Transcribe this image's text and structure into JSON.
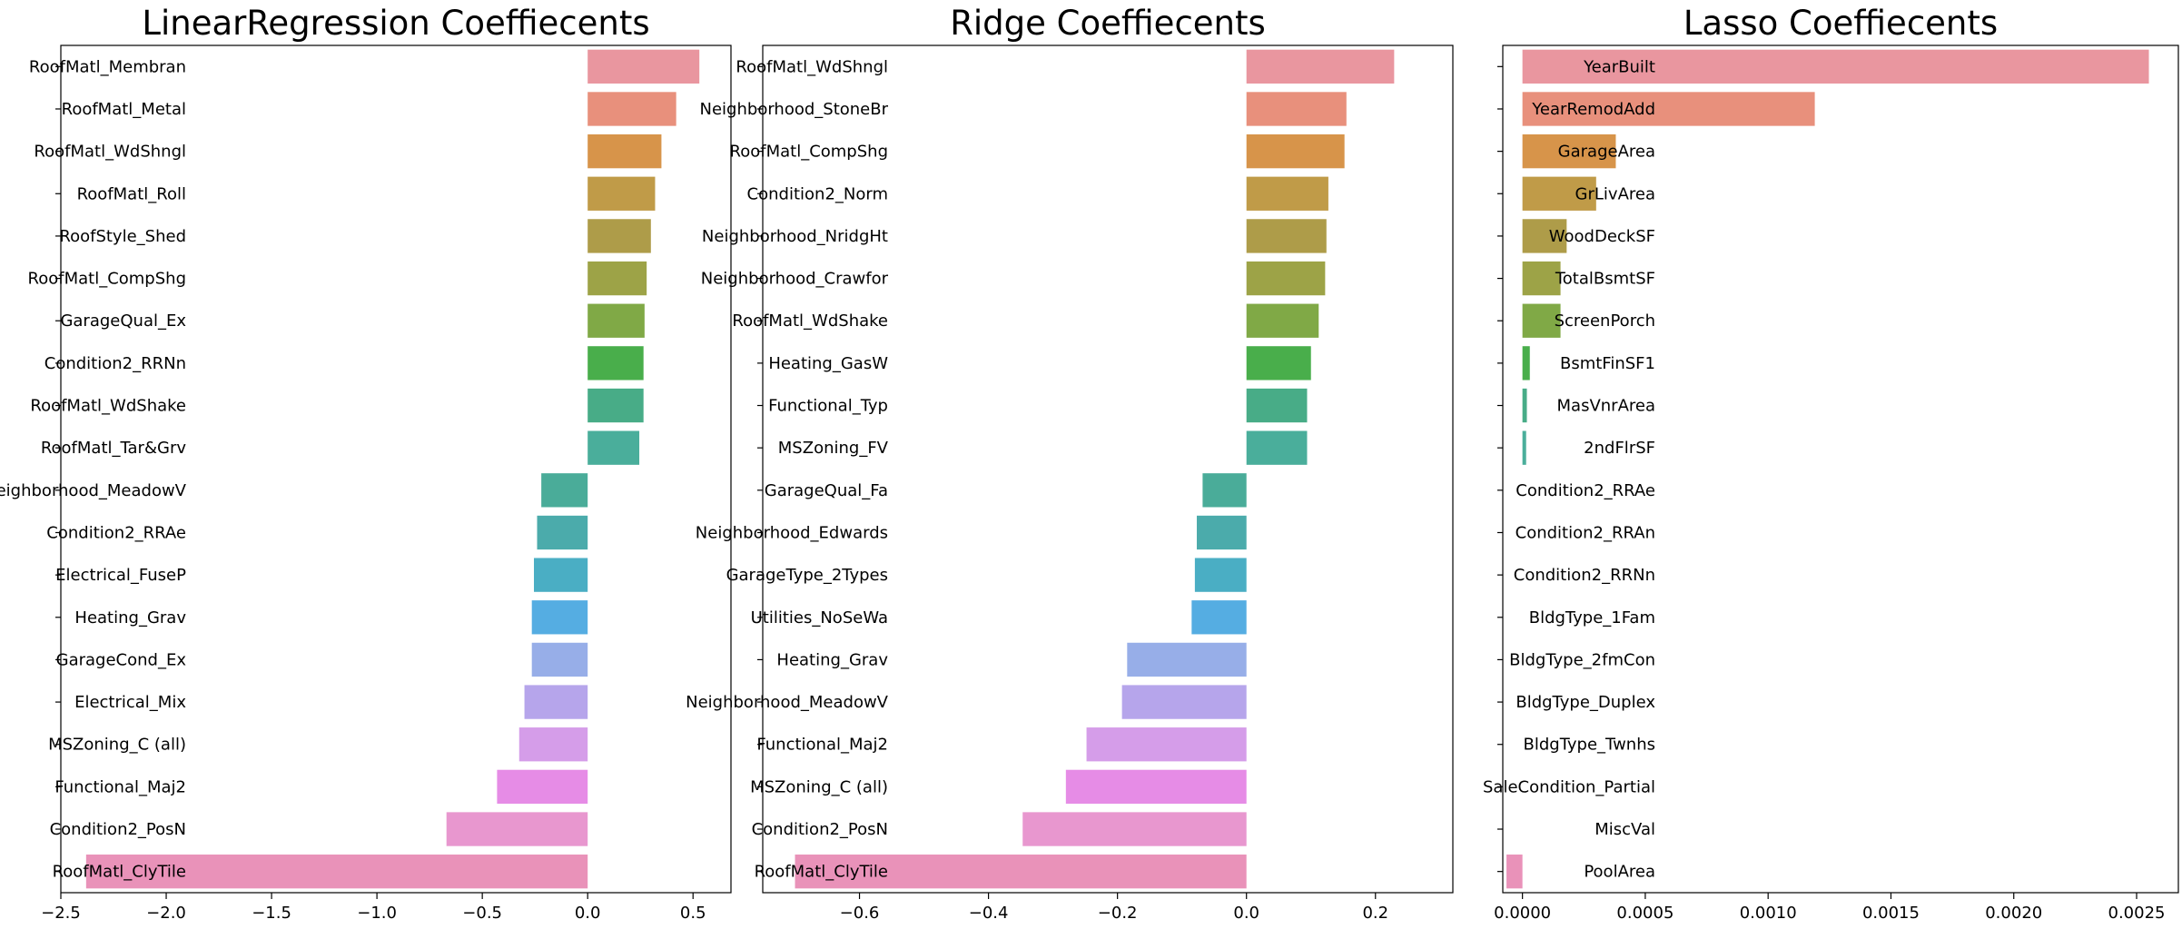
{
  "chart_data": [
    {
      "type": "bar",
      "orientation": "horizontal",
      "title": "LinearRegression Coeffiecents",
      "xlabel": "",
      "ylabel": "",
      "xlim": [
        -2.5,
        0.68
      ],
      "xticks": [
        -2.5,
        -2.0,
        -1.5,
        -1.0,
        -0.5,
        0.0,
        0.5
      ],
      "xtick_labels": [
        "−2.5",
        "−2.0",
        "−1.5",
        "−1.0",
        "−0.5",
        "0.0",
        "0.5"
      ],
      "categories": [
        "RoofMatl_Membran",
        "RoofMatl_Metal",
        "RoofMatl_WdShngl",
        "RoofMatl_Roll",
        "RoofStyle_Shed",
        "RoofMatl_CompShg",
        "GarageQual_Ex",
        "Condition2_RRNn",
        "RoofMatl_WdShake",
        "RoofMatl_Tar&Grv",
        "Neighborhood_MeadowV",
        "Condition2_RRAe",
        "Electrical_FuseP",
        "Heating_Grav",
        "GarageCond_Ex",
        "Electrical_Mix",
        "MSZoning_C (all)",
        "Functional_Maj2",
        "Condition2_PosN",
        "RoofMatl_ClyTile"
      ],
      "values": [
        0.53,
        0.42,
        0.35,
        0.32,
        0.3,
        0.28,
        0.27,
        0.265,
        0.265,
        0.245,
        -0.22,
        -0.24,
        -0.255,
        -0.265,
        -0.265,
        -0.3,
        -0.325,
        -0.43,
        -0.67,
        -2.38
      ]
    },
    {
      "type": "bar",
      "orientation": "horizontal",
      "title": "Ridge Coeffiecents",
      "xlabel": "",
      "ylabel": "",
      "xlim": [
        -0.75,
        0.32
      ],
      "xticks": [
        -0.6,
        -0.4,
        -0.2,
        0.0,
        0.2
      ],
      "xtick_labels": [
        "−0.6",
        "−0.4",
        "−0.2",
        "0.0",
        "0.2"
      ],
      "categories": [
        "RoofMatl_WdShngl",
        "Neighborhood_StoneBr",
        "RoofMatl_CompShg",
        "Condition2_Norm",
        "Neighborhood_NridgHt",
        "Neighborhood_Crawfor",
        "RoofMatl_WdShake",
        "Heating_GasW",
        "Functional_Typ",
        "MSZoning_FV",
        "GarageQual_Fa",
        "Neighborhood_Edwards",
        "GarageType_2Types",
        "Utilities_NoSeWa",
        "Heating_Grav",
        "Neighborhood_MeadowV",
        "Functional_Maj2",
        "MSZoning_C (all)",
        "Condition2_PosN",
        "RoofMatl_ClyTile"
      ],
      "values": [
        0.229,
        0.155,
        0.152,
        0.127,
        0.124,
        0.122,
        0.112,
        0.1,
        0.094,
        0.094,
        -0.068,
        -0.077,
        -0.08,
        -0.085,
        -0.185,
        -0.193,
        -0.248,
        -0.28,
        -0.347,
        -0.7
      ]
    },
    {
      "type": "bar",
      "orientation": "horizontal",
      "title": "Lasso Coeffiecents",
      "xlabel": "",
      "ylabel": "",
      "xlim": [
        -8e-05,
        0.00267
      ],
      "xticks": [
        0.0,
        0.0005,
        0.001,
        0.0015,
        0.002,
        0.0025
      ],
      "xtick_labels": [
        "0.0000",
        "0.0005",
        "0.0010",
        "0.0015",
        "0.0020",
        "0.0025"
      ],
      "categories": [
        "YearBuilt",
        "YearRemodAdd",
        "GarageArea",
        "GrLivArea",
        "WoodDeckSF",
        "TotalBsmtSF",
        "ScreenPorch",
        "BsmtFinSF1",
        "MasVnrArea",
        "2ndFlrSF",
        "Condition2_RRAe",
        "Condition2_RRAn",
        "Condition2_RRNn",
        "BldgType_1Fam",
        "BldgType_2fmCon",
        "BldgType_Duplex",
        "BldgType_Twnhs",
        "SaleCondition_Partial",
        "MiscVal",
        "PoolArea"
      ],
      "values": [
        0.00255,
        0.00119,
        0.00038,
        0.0003,
        0.00018,
        0.000155,
        0.000155,
        3e-05,
        1.8e-05,
        1.5e-05,
        0.0,
        0.0,
        0.0,
        0.0,
        0.0,
        0.0,
        0.0,
        0.0,
        0.0,
        -6.5e-05
      ]
    }
  ],
  "bar_colors": [
    "#e9969f",
    "#e8907c",
    "#d7944a",
    "#c09b48",
    "#ae9c49",
    "#9da347",
    "#80a946",
    "#49ae4b",
    "#48ac87",
    "#4aae9b",
    "#4aac99",
    "#4babab",
    "#4aaec4",
    "#55ade2",
    "#97aee8",
    "#b6a5eb",
    "#d59de9",
    "#e68ce6",
    "#e897cf",
    "#e992b9"
  ]
}
